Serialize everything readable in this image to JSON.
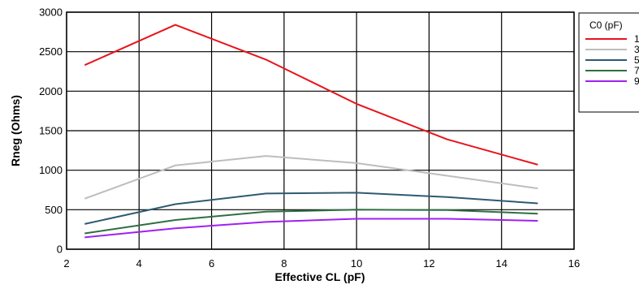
{
  "chart_data": {
    "type": "line",
    "title": "",
    "xlabel": "Effective CL (pF)",
    "ylabel": "Rneg (Ohms)",
    "xlim": [
      2,
      16
    ],
    "ylim": [
      0,
      3000
    ],
    "x_ticks": [
      2,
      4,
      6,
      8,
      10,
      12,
      14,
      16
    ],
    "y_ticks": [
      0,
      500,
      1000,
      1500,
      2000,
      2500,
      3000
    ],
    "grid": true,
    "legend": {
      "title": "C0 (pF)",
      "placement": "right",
      "entries": [
        "1",
        "3",
        "5",
        "7",
        "9"
      ]
    },
    "x": [
      2.5,
      5,
      7.5,
      10,
      12.5,
      15
    ],
    "series": [
      {
        "name": "1",
        "color": "#e8141b",
        "values": [
          2330,
          2840,
          2400,
          1840,
          1390,
          1070
        ]
      },
      {
        "name": "3",
        "color": "#bdbdbd",
        "values": [
          640,
          1060,
          1180,
          1090,
          930,
          770
        ]
      },
      {
        "name": "5",
        "color": "#2e5a72",
        "values": [
          320,
          570,
          705,
          715,
          660,
          580
        ]
      },
      {
        "name": "7",
        "color": "#2f6e42",
        "values": [
          200,
          370,
          475,
          500,
          495,
          450
        ]
      },
      {
        "name": "9",
        "color": "#a020f0",
        "values": [
          150,
          265,
          345,
          385,
          385,
          360
        ]
      }
    ]
  }
}
